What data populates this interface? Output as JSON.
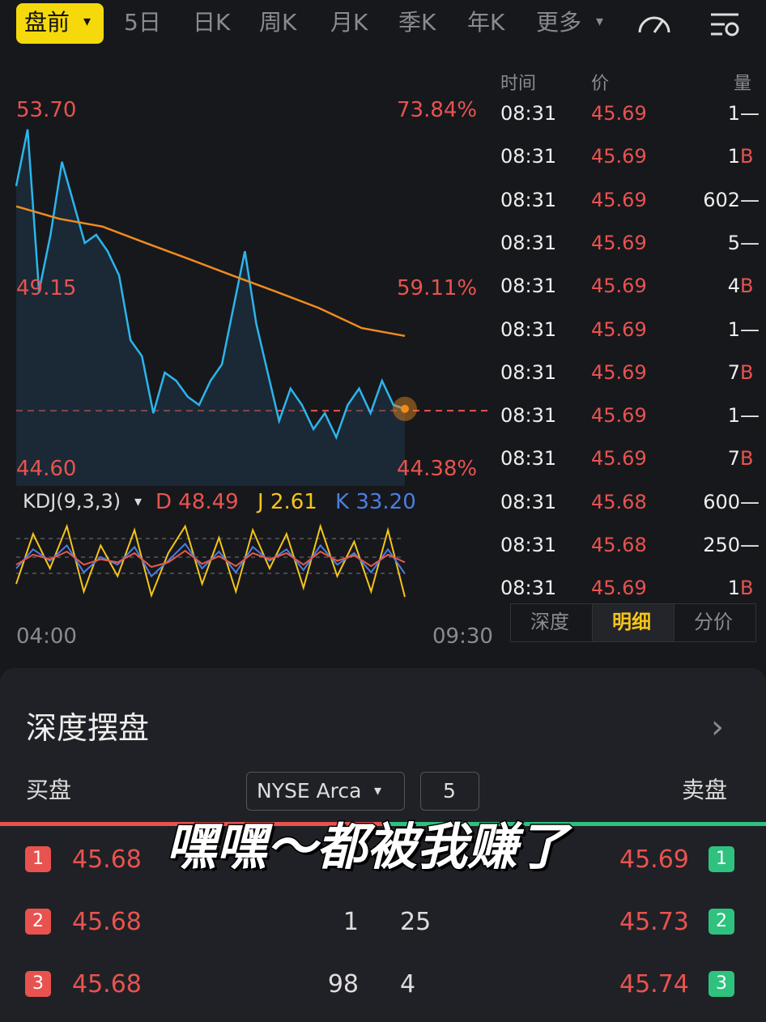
{
  "tabs": {
    "active": "盘前",
    "active_arrow": "▾",
    "items": [
      "5日",
      "日K",
      "周K",
      "月K",
      "季K",
      "年K",
      "更多"
    ],
    "more_arrow": "▾"
  },
  "chart": {
    "type": "line",
    "yticks": [
      {
        "value": 53.7,
        "label": "53.70"
      },
      {
        "value": 49.15,
        "label": "49.15"
      },
      {
        "value": 44.6,
        "label": "44.60"
      }
    ],
    "pct_labels": [
      "73.84%",
      "59.11%",
      "44.38%"
    ],
    "reference_line": 45.69,
    "x_labels": [
      "04:00",
      "09:30"
    ],
    "series": [
      {
        "name": "price",
        "color": "#2cb5ec",
        "values": [
          52.0,
          53.59,
          49.04,
          50.63,
          52.68,
          51.54,
          50.4,
          50.63,
          50.17,
          49.49,
          47.67,
          47.22,
          45.62,
          46.76,
          46.53,
          46.08,
          45.85,
          46.53,
          46.99,
          48.58,
          50.17,
          48.13,
          46.76,
          45.4,
          46.31,
          45.85,
          45.17,
          45.62,
          44.94,
          45.85,
          46.31,
          45.62,
          46.53,
          45.85,
          45.74
        ]
      },
      {
        "name": "avg",
        "color": "#f08c1e",
        "values": [
          51.43,
          51.08,
          50.86,
          50.4,
          49.95,
          49.49,
          49.04,
          48.58,
          48.01,
          47.79
        ]
      }
    ]
  },
  "kdj": {
    "title": "KDJ(9,3,3)",
    "arrow": "▾",
    "d": "D 48.49",
    "j": "J 2.61",
    "k": "K 33.20",
    "series": [
      {
        "name": "J",
        "color": "#f5c518",
        "values": [
          20,
          85,
          40,
          95,
          10,
          70,
          30,
          90,
          5,
          60,
          95,
          20,
          80,
          10,
          90,
          40,
          85,
          15,
          95,
          30,
          75,
          10,
          90,
          3
        ]
      },
      {
        "name": "K",
        "color": "#4a7fe0",
        "values": [
          40,
          65,
          50,
          70,
          35,
          55,
          45,
          68,
          30,
          50,
          72,
          40,
          62,
          35,
          68,
          50,
          65,
          38,
          70,
          45,
          60,
          35,
          65,
          33
        ]
      },
      {
        "name": "D",
        "color": "#e85a4a",
        "values": [
          45,
          58,
          52,
          62,
          45,
          52,
          48,
          60,
          42,
          48,
          63,
          46,
          56,
          43,
          60,
          52,
          60,
          45,
          62,
          50,
          57,
          43,
          58,
          48
        ]
      }
    ]
  },
  "trades": {
    "headers": [
      "时间",
      "价",
      "量"
    ],
    "rows": [
      [
        "08:31",
        "45.69",
        "1",
        "—"
      ],
      [
        "08:31",
        "45.69",
        "1",
        "B"
      ],
      [
        "08:31",
        "45.69",
        "602",
        "—"
      ],
      [
        "08:31",
        "45.69",
        "5",
        "—"
      ],
      [
        "08:31",
        "45.69",
        "4",
        "B"
      ],
      [
        "08:31",
        "45.69",
        "1",
        "—"
      ],
      [
        "08:31",
        "45.69",
        "7",
        "B"
      ],
      [
        "08:31",
        "45.69",
        "1",
        "—"
      ],
      [
        "08:31",
        "45.69",
        "7",
        "B"
      ],
      [
        "08:31",
        "45.68",
        "600",
        "—"
      ],
      [
        "08:31",
        "45.68",
        "250",
        "—"
      ],
      [
        "08:31",
        "45.69",
        "1",
        "B"
      ]
    ],
    "tabs": [
      "深度",
      "明细",
      "分价"
    ]
  },
  "depth": {
    "title": "深度摆盘",
    "arrow": "›",
    "buy": "买盘",
    "exchange": "NYSE Arca",
    "exchange_arrow": "▾",
    "levels": "5",
    "sell": "卖盘",
    "rows": [
      {
        "bl": "1",
        "bp": "45.68",
        "sp": "45.69",
        "sl": "1"
      },
      {
        "bl": "2",
        "bp": "45.68",
        "bq": "1",
        "sq": "25",
        "sp": "45.73",
        "sl": "2"
      },
      {
        "bl": "3",
        "bp": "45.68",
        "bq": "98",
        "sq": "4",
        "sp": "45.74",
        "sl": "3"
      }
    ]
  },
  "caption": "嘿嘿～都被我赚了"
}
